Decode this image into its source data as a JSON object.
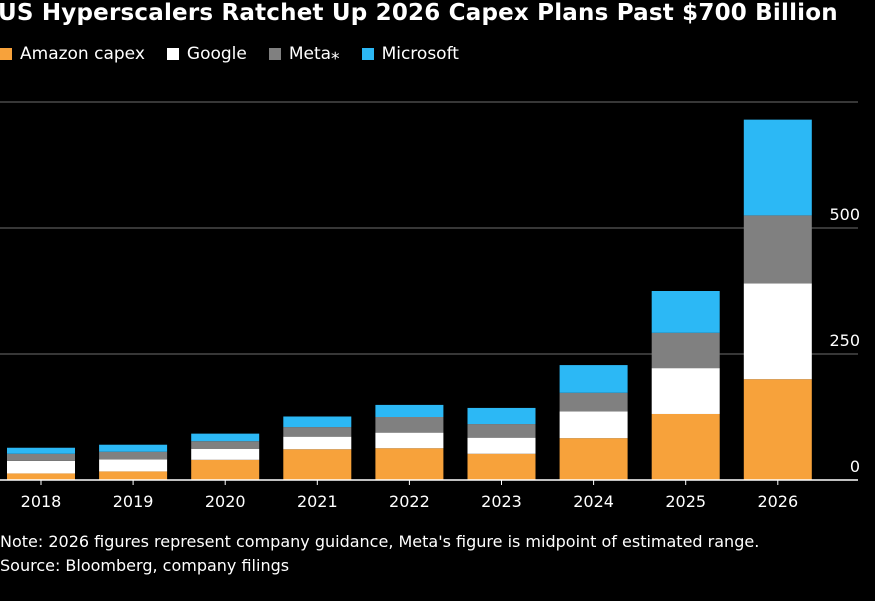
{
  "title": "US Hyperscalers Ratchet Up 2026 Capex Plans Past $700 Billion",
  "note": "Note: 2026 figures represent company guidance, Meta's figure is midpoint of estimated range.",
  "source": "Source: Bloomberg, company filings",
  "colors": {
    "background": "#000000",
    "grid": "#6e6e6e"
  },
  "chart_data": {
    "type": "bar",
    "stacked": true,
    "categories": [
      "2018",
      "2019",
      "2020",
      "2021",
      "2022",
      "2023",
      "2024",
      "2025",
      "2026"
    ],
    "series": [
      {
        "name": "Amazon capex",
        "color": "#f7a23b",
        "values": [
          13,
          17,
          40,
          61,
          63,
          52,
          83,
          131,
          200
        ]
      },
      {
        "name": "Google",
        "color": "#ffffff",
        "values": [
          25,
          24,
          22,
          25,
          31,
          32,
          53,
          91,
          190
        ]
      },
      {
        "name": "Meta⁎",
        "color": "#808080",
        "values": [
          14,
          15,
          15,
          19,
          31,
          27,
          37,
          70,
          135
        ]
      },
      {
        "name": "Microsoft",
        "color": "#2cb8f5",
        "values": [
          12,
          14,
          15,
          21,
          24,
          32,
          55,
          83,
          190
        ]
      }
    ],
    "yticks": [
      0,
      250,
      500
    ],
    "ylim": [
      0,
      750
    ],
    "grid": true,
    "legend_position": "top-left",
    "y_axis_side": "right"
  }
}
